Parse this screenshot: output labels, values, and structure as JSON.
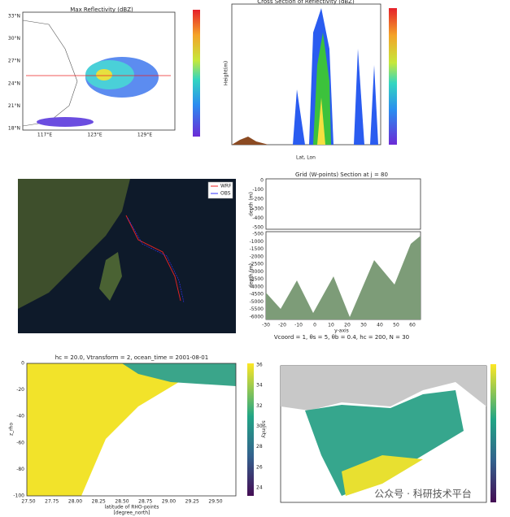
{
  "panels": [
    {
      "title": "Max Reflectivity (dBZ)",
      "yticks": [
        "33°N",
        "30°N",
        "27°N",
        "24°N",
        "21°N",
        "18°N"
      ],
      "xticks": [
        "117°E",
        "123°E",
        "129°E"
      ]
    },
    {
      "title": "Cross Section of Reflectivity (dBZ)",
      "ylabel": "Height(m)",
      "xlabel": "Lat, Lon"
    },
    {
      "legend": [
        "WRF",
        "OBS"
      ]
    },
    {
      "title": "Grid (W-points) Section at  j = 80",
      "ylabel": "depth (m)",
      "upper_yticks": [
        0,
        -100,
        -200,
        -300,
        -400,
        -500
      ],
      "lower_yticks": [
        -500,
        -1000,
        -1500,
        -2000,
        -2500,
        -3000,
        -3500,
        -4000,
        -4500,
        -5000,
        -5500,
        -6000
      ],
      "xticks": [
        -30,
        -20,
        -10,
        0,
        10,
        20,
        30,
        40,
        50,
        60
      ],
      "xlabel": "y-axis",
      "caption": "Vcoord = 1, θs = 5, θb = 0.4, hc = 200, N = 30"
    },
    {
      "title": "hc = 20.0, Vtransform = 2, ocean_time = 2001-08-01",
      "yticks": [
        0,
        -20,
        -40,
        -60,
        -80,
        -100
      ],
      "xticks": [
        "27.50",
        "27.75",
        "28.00",
        "28.25",
        "28.50",
        "28.75",
        "29.00",
        "29.25",
        "29.50"
      ],
      "xlabel": "latitude of RHO-points",
      "xunits": "[degree_north]",
      "ylabel": "z_rho",
      "colorbar_ticks": [
        36,
        34,
        32,
        30,
        28,
        26,
        24
      ],
      "colorbar_label": "salinity"
    }
  ],
  "watermark": "公众号 · 科研技术平台"
}
